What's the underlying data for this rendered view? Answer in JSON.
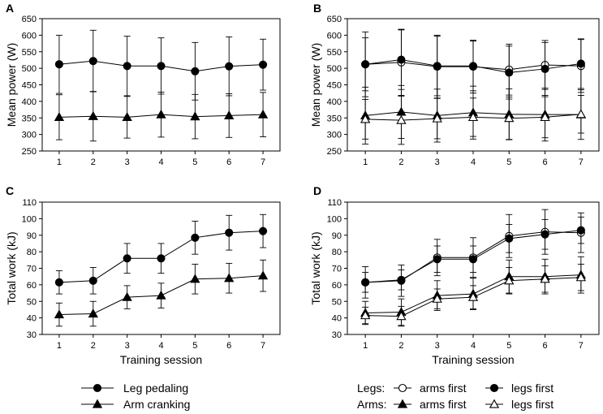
{
  "chart_data": [
    {
      "panel": "A",
      "type": "line",
      "xlabel": "",
      "ylabel": "Mean power (W)",
      "x": [
        1,
        2,
        3,
        4,
        5,
        6,
        7
      ],
      "xticks": [
        "1",
        "2",
        "3",
        "4",
        "5",
        "6",
        "7"
      ],
      "ylim": [
        250,
        650
      ],
      "yticks": [
        "250",
        "300",
        "350",
        "400",
        "450",
        "500",
        "550",
        "600",
        "650"
      ],
      "yticks_values": [
        250,
        300,
        350,
        400,
        450,
        500,
        550,
        600,
        650
      ],
      "series": [
        {
          "name": "Leg pedaling",
          "marker": "circle-filled",
          "values": [
            512,
            522,
            507,
            507,
            491,
            506,
            511
          ],
          "errors": [
            88,
            93,
            90,
            85,
            87,
            89,
            77
          ]
        },
        {
          "name": "Arm cranking",
          "marker": "triangle-filled",
          "values": [
            352,
            355,
            352,
            360,
            354,
            357,
            360
          ],
          "errors": [
            68,
            75,
            63,
            68,
            67,
            66,
            67
          ]
        }
      ]
    },
    {
      "panel": "B",
      "type": "line",
      "xlabel": "",
      "ylabel": "Mean power (W)",
      "x": [
        1,
        2,
        3,
        4,
        5,
        6,
        7
      ],
      "xticks": [
        "1",
        "2",
        "3",
        "4",
        "5",
        "6",
        "7"
      ],
      "ylim": [
        250,
        650
      ],
      "yticks": [
        "250",
        "300",
        "350",
        "400",
        "450",
        "500",
        "550",
        "600",
        "650"
      ],
      "yticks_values": [
        250,
        300,
        350,
        400,
        450,
        500,
        550,
        600,
        650
      ],
      "series": [
        {
          "name": "Legs: arms first",
          "marker": "circle-open",
          "values": [
            512,
            518,
            505,
            505,
            496,
            510,
            507
          ],
          "errors": [
            98,
            100,
            95,
            80,
            77,
            74,
            80
          ]
        },
        {
          "name": "Legs: legs first",
          "marker": "circle-filled",
          "values": [
            512,
            526,
            507,
            507,
            487,
            498,
            514
          ],
          "errors": [
            80,
            90,
            90,
            75,
            80,
            80,
            75
          ]
        },
        {
          "name": "Arms: arms first",
          "marker": "triangle-filled",
          "values": [
            357,
            368,
            357,
            366,
            361,
            360,
            360
          ],
          "errors": [
            86,
            80,
            80,
            80,
            77,
            80,
            75
          ]
        },
        {
          "name": "Arms: legs first",
          "marker": "triangle-open",
          "values": [
            346,
            343,
            348,
            352,
            349,
            352,
            361
          ],
          "errors": [
            60,
            73,
            61,
            58,
            64,
            62,
            57
          ]
        }
      ]
    },
    {
      "panel": "C",
      "type": "line",
      "xlabel": "Training session",
      "ylabel": "Total work (kJ)",
      "x": [
        1,
        2,
        3,
        4,
        5,
        6,
        7
      ],
      "xticks": [
        "1",
        "2",
        "3",
        "4",
        "5",
        "6",
        "7"
      ],
      "ylim": [
        30,
        110
      ],
      "yticks": [
        "30",
        "40",
        "50",
        "60",
        "70",
        "80",
        "90",
        "100",
        "110"
      ],
      "yticks_values": [
        30,
        40,
        50,
        60,
        70,
        80,
        90,
        100,
        110
      ],
      "series": [
        {
          "name": "Leg pedaling",
          "marker": "circle-filled",
          "values": [
            61.5,
            62.5,
            76,
            76,
            88.5,
            91.5,
            92.5
          ],
          "errors": [
            7,
            8,
            9,
            9,
            10,
            10.5,
            10
          ]
        },
        {
          "name": "Arm cranking",
          "marker": "triangle-filled",
          "values": [
            42,
            42.5,
            52.5,
            53.5,
            63.5,
            64,
            65.5
          ],
          "errors": [
            7,
            7.5,
            7,
            7.5,
            9,
            9,
            9.5
          ]
        }
      ]
    },
    {
      "panel": "D",
      "type": "line",
      "xlabel": "Training session",
      "ylabel": "Total work (kJ)",
      "x": [
        1,
        2,
        3,
        4,
        5,
        6,
        7
      ],
      "xticks": [
        "1",
        "2",
        "3",
        "4",
        "5",
        "6",
        "7"
      ],
      "ylim": [
        30,
        110
      ],
      "yticks": [
        "30",
        "40",
        "50",
        "60",
        "70",
        "80",
        "90",
        "100",
        "110"
      ],
      "yticks_values": [
        30,
        40,
        50,
        60,
        70,
        80,
        90,
        100,
        110
      ],
      "series": [
        {
          "name": "Legs: arms first",
          "marker": "circle-open",
          "values": [
            61.5,
            62.5,
            76.5,
            76.5,
            89.5,
            92,
            91.5
          ],
          "errors": [
            9.5,
            9.5,
            11,
            12,
            13,
            13.5,
            12
          ]
        },
        {
          "name": "Legs: legs first",
          "marker": "circle-filled",
          "values": [
            61.5,
            63,
            75.5,
            75.5,
            88,
            90.5,
            93
          ],
          "errors": [
            6,
            6,
            8,
            8,
            8.5,
            9,
            8
          ]
        },
        {
          "name": "Arms: arms first",
          "marker": "triangle-filled",
          "values": [
            43,
            43.5,
            53.5,
            54.5,
            65,
            65,
            66
          ],
          "errors": [
            7,
            8,
            9,
            9.5,
            10,
            10.5,
            11
          ]
        },
        {
          "name": "Arms: legs first",
          "marker": "triangle-open",
          "values": [
            41.5,
            41,
            51.5,
            52.5,
            62.5,
            63.5,
            64.5
          ],
          "errors": [
            5,
            6,
            6,
            7,
            8,
            8,
            8
          ]
        }
      ]
    }
  ],
  "legends": {
    "left": [
      {
        "label": "Leg pedaling",
        "marker": "circle-filled"
      },
      {
        "label": "Arm cranking",
        "marker": "triangle-filled"
      }
    ],
    "right": {
      "rows": [
        {
          "group": "Legs:",
          "items": [
            {
              "label": "arms first",
              "marker": "circle-open"
            },
            {
              "label": "legs first",
              "marker": "circle-filled"
            }
          ]
        },
        {
          "group": "Arms:",
          "items": [
            {
              "label": "arms first",
              "marker": "triangle-filled"
            },
            {
              "label": "legs first",
              "marker": "triangle-open"
            }
          ]
        }
      ]
    }
  }
}
